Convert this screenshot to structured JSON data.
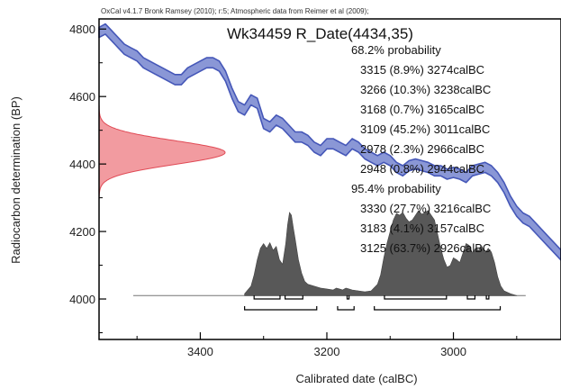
{
  "header": "OxCal v4.1.7 Bronk Ramsey (2010); r:5; Atmospheric data from Reimer et al (2009);",
  "chart_data": {
    "type": "line",
    "title": "Wk34459 R_Date(4434,35)",
    "xlabel": "Calibrated date (calBC)",
    "ylabel": "Radiocarbon determination (BP)",
    "x_direction": "decreasing to the right (BC)",
    "xlim": [
      3560,
      2830
    ],
    "ylim": [
      3880,
      4830
    ],
    "x_ticks": [
      3400,
      3200,
      3000
    ],
    "y_ticks": [
      4000,
      4200,
      4400,
      4600,
      4800
    ],
    "calibration_curve": {
      "x": [
        3560,
        3550,
        3540,
        3530,
        3520,
        3510,
        3500,
        3490,
        3480,
        3470,
        3460,
        3450,
        3440,
        3430,
        3420,
        3410,
        3400,
        3390,
        3380,
        3370,
        3360,
        3350,
        3340,
        3330,
        3320,
        3310,
        3300,
        3290,
        3280,
        3270,
        3260,
        3250,
        3240,
        3230,
        3220,
        3210,
        3200,
        3190,
        3180,
        3170,
        3160,
        3150,
        3140,
        3130,
        3120,
        3110,
        3100,
        3090,
        3080,
        3070,
        3060,
        3050,
        3040,
        3030,
        3020,
        3010,
        3000,
        2990,
        2980,
        2970,
        2960,
        2950,
        2940,
        2930,
        2920,
        2910,
        2900,
        2890,
        2880,
        2870,
        2860,
        2850,
        2840,
        2830
      ],
      "y": [
        4790,
        4800,
        4780,
        4760,
        4740,
        4730,
        4720,
        4700,
        4690,
        4680,
        4670,
        4660,
        4650,
        4650,
        4670,
        4680,
        4690,
        4700,
        4700,
        4690,
        4660,
        4610,
        4570,
        4560,
        4590,
        4580,
        4520,
        4510,
        4530,
        4520,
        4500,
        4480,
        4480,
        4470,
        4450,
        4440,
        4460,
        4460,
        4450,
        4440,
        4460,
        4450,
        4430,
        4420,
        4410,
        4420,
        4410,
        4390,
        4380,
        4395,
        4400,
        4395,
        4390,
        4380,
        4380,
        4370,
        4375,
        4370,
        4360,
        4380,
        4385,
        4390,
        4380,
        4360,
        4330,
        4290,
        4260,
        4240,
        4230,
        4210,
        4190,
        4170,
        4150,
        4130
      ],
      "band_sigma": 15
    },
    "radiocarbon_date": {
      "mean": 4434,
      "error": 35
    },
    "probability_distribution": {
      "x": [
        3330,
        3320,
        3315,
        3310,
        3305,
        3300,
        3295,
        3290,
        3285,
        3280,
        3275,
        3270,
        3265,
        3262,
        3259,
        3256,
        3253,
        3250,
        3245,
        3240,
        3235,
        3230,
        3220,
        3210,
        3200,
        3190,
        3185,
        3180,
        3175,
        3170,
        3165,
        3160,
        3150,
        3140,
        3130,
        3120,
        3115,
        3110,
        3105,
        3100,
        3095,
        3090,
        3085,
        3080,
        3075,
        3070,
        3065,
        3060,
        3055,
        3050,
        3045,
        3040,
        3035,
        3030,
        3025,
        3020,
        3015,
        3010,
        3005,
        3000,
        2995,
        2990,
        2985,
        2980,
        2975,
        2970,
        2965,
        2960,
        2955,
        2950,
        2945,
        2940,
        2935,
        2930,
        2925,
        2920,
        2910,
        2900
      ],
      "density": [
        0.02,
        0.1,
        0.22,
        0.38,
        0.5,
        0.55,
        0.5,
        0.56,
        0.48,
        0.52,
        0.38,
        0.33,
        0.55,
        0.75,
        0.88,
        0.85,
        0.72,
        0.6,
        0.38,
        0.24,
        0.15,
        0.12,
        0.1,
        0.08,
        0.07,
        0.06,
        0.08,
        0.07,
        0.06,
        0.08,
        0.07,
        0.06,
        0.05,
        0.04,
        0.05,
        0.12,
        0.22,
        0.4,
        0.55,
        0.68,
        0.8,
        0.87,
        0.85,
        0.88,
        0.82,
        0.78,
        0.8,
        0.85,
        0.9,
        0.86,
        0.88,
        0.9,
        0.85,
        0.8,
        0.65,
        0.5,
        0.38,
        0.3,
        0.32,
        0.4,
        0.38,
        0.35,
        0.45,
        0.55,
        0.53,
        0.45,
        0.5,
        0.48,
        0.52,
        0.45,
        0.5,
        0.46,
        0.35,
        0.2,
        0.1,
        0.05,
        0.02,
        0.0
      ]
    },
    "probability_text": {
      "sigma1_label": "68.2% probability",
      "sigma1_ranges": [
        "3315 (8.9%) 3274calBC",
        "3266 (10.3%) 3238calBC",
        "3168 (0.7%) 3165calBC",
        "3109 (45.2%) 3011calBC",
        "2978 (2.3%) 2966calBC",
        "2948 (0.8%) 2944calBC"
      ],
      "sigma2_label": "95.4% probability",
      "sigma2_ranges": [
        "3330 (27.7%) 3216calBC",
        "3183 (4.1%) 3157calBC",
        "3125 (63.7%) 2926calBC"
      ]
    },
    "range_brackets": {
      "sigma1": [
        [
          3315,
          3274
        ],
        [
          3266,
          3238
        ],
        [
          3168,
          3165
        ],
        [
          3109,
          3011
        ],
        [
          2978,
          2966
        ],
        [
          2948,
          2944
        ]
      ],
      "sigma2": [
        [
          3330,
          3216
        ],
        [
          3183,
          3157
        ],
        [
          3125,
          2926
        ]
      ]
    },
    "colors": {
      "curve": "#4557b8",
      "curve_band": "#8a97d6",
      "date_fill": "#f08a8f",
      "date_stroke": "#e04a55",
      "distribution": "#585858"
    }
  }
}
